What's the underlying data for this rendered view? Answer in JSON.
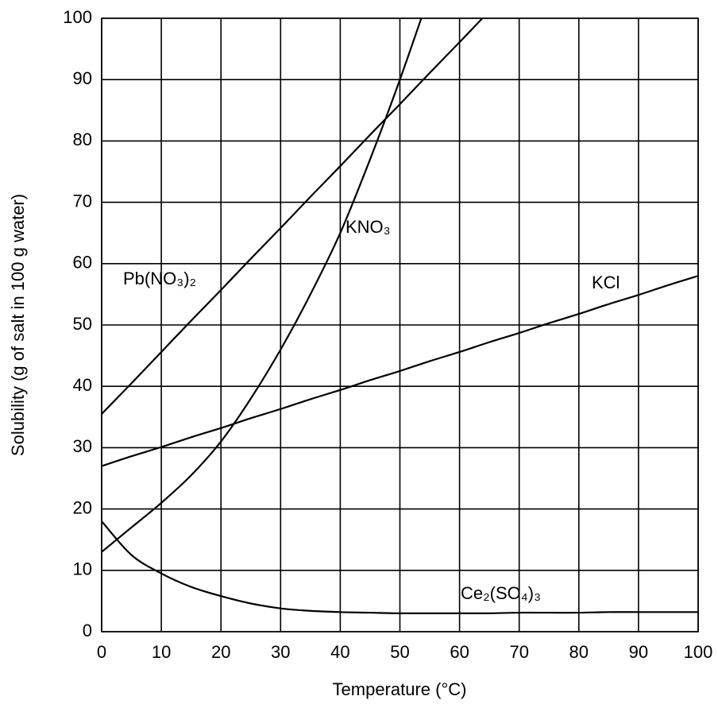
{
  "chart_data": {
    "type": "line",
    "x_label": "Temperature (°C)",
    "y_label": "Solubility  (g of salt in 100 g water)",
    "x": [
      0,
      5,
      10,
      15,
      20,
      25,
      30,
      35,
      40,
      45,
      50,
      55,
      60,
      65,
      70,
      75,
      80,
      85,
      90,
      95,
      100
    ],
    "series": [
      {
        "name": "KNO₃",
        "color": "#000000",
        "values": [
          13,
          17,
          21,
          25.5,
          31,
          38,
          46,
          55,
          65,
          77,
          90,
          104,
          null,
          null,
          null,
          null,
          null,
          null,
          null,
          null,
          null
        ]
      },
      {
        "name": "Pb(NO₃)₂",
        "color": "#000000",
        "values": [
          35.5,
          40.5,
          45.6,
          50.7,
          55.7,
          60.8,
          65.8,
          70.9,
          75.9,
          81,
          86,
          91.1,
          96.1,
          101.2,
          null,
          null,
          null,
          null,
          null,
          null,
          null
        ]
      },
      {
        "name": "KCl",
        "color": "#000000",
        "values": [
          27,
          28.6,
          30.1,
          31.7,
          33.2,
          34.8,
          36.3,
          37.9,
          39.4,
          41,
          42.5,
          44.1,
          45.6,
          47.2,
          48.7,
          50.3,
          51.8,
          53.4,
          54.9,
          56.5,
          58
        ]
      },
      {
        "name": "Ce₂(SO₄)₃",
        "color": "#000000",
        "values": [
          18,
          12.5,
          9.5,
          7.3,
          5.8,
          4.6,
          3.8,
          3.4,
          3.2,
          3.1,
          3,
          3,
          3,
          3,
          3.1,
          3.1,
          3.1,
          3.2,
          3.2,
          3.2,
          3.2
        ]
      }
    ],
    "xlim": [
      0,
      100
    ],
    "ylim": [
      0,
      100
    ],
    "xticks": [
      0,
      10,
      20,
      30,
      40,
      50,
      60,
      70,
      80,
      90,
      100
    ],
    "yticks": [
      0,
      10,
      20,
      30,
      40,
      50,
      60,
      70,
      80,
      90,
      100
    ],
    "grid": true
  }
}
